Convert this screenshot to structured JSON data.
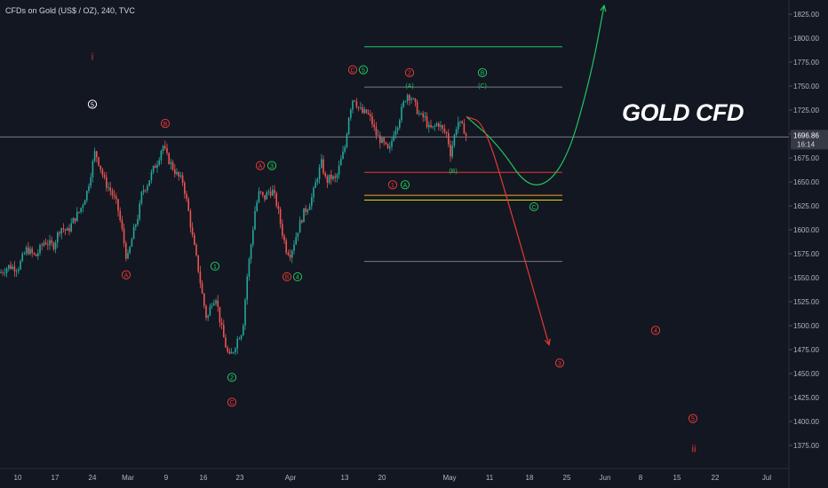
{
  "header": {
    "symbol": "CFDs on Gold (US$ / OZ), 240, TVC"
  },
  "chart_title": "GOLD CFD",
  "colors": {
    "background": "#131722",
    "up": "#26a69a",
    "down": "#ef5350",
    "green": "#22c55e",
    "red": "#e53935",
    "axis_text": "#b2b5be",
    "grid": "#2a2e39"
  },
  "chart_data": {
    "type": "candlestick",
    "y_ticks": [
      1375,
      1400,
      1425,
      1450,
      1475,
      1500,
      1525,
      1550,
      1575,
      1600,
      1625,
      1650,
      1675,
      1700,
      1725,
      1750,
      1775,
      1800,
      1825
    ],
    "ylim": [
      1362,
      1837
    ],
    "x_ticks": [
      "10",
      "17",
      "24",
      "Mar",
      "9",
      "16",
      "23",
      "Apr",
      "13",
      "20",
      "May",
      "11",
      "18",
      "25",
      "Jun",
      "8",
      "15",
      "22",
      "Jul"
    ],
    "last_price": "1696.86",
    "countdown": "16:14",
    "price_path": [
      [
        0,
        1555
      ],
      [
        10,
        1562
      ],
      [
        20,
        1560
      ],
      [
        30,
        1580
      ],
      [
        40,
        1572
      ],
      [
        50,
        1588
      ],
      [
        60,
        1583
      ],
      [
        68,
        1603
      ],
      [
        76,
        1598
      ],
      [
        84,
        1612
      ],
      [
        90,
        1620
      ],
      [
        98,
        1640
      ],
      [
        103,
        1663
      ],
      [
        107,
        1682
      ],
      [
        112,
        1668
      ],
      [
        118,
        1650
      ],
      [
        125,
        1640
      ],
      [
        132,
        1625
      ],
      [
        138,
        1596
      ],
      [
        143,
        1567
      ],
      [
        150,
        1597
      ],
      [
        156,
        1617
      ],
      [
        160,
        1640
      ],
      [
        166,
        1648
      ],
      [
        172,
        1662
      ],
      [
        178,
        1673
      ],
      [
        183,
        1689
      ],
      [
        188,
        1676
      ],
      [
        194,
        1666
      ],
      [
        200,
        1656
      ],
      [
        206,
        1650
      ],
      [
        212,
        1620
      ],
      [
        217,
        1590
      ],
      [
        223,
        1560
      ],
      [
        228,
        1530
      ],
      [
        233,
        1505
      ],
      [
        238,
        1525
      ],
      [
        243,
        1530
      ],
      [
        248,
        1503
      ],
      [
        253,
        1482
      ],
      [
        258,
        1466
      ],
      [
        263,
        1475
      ],
      [
        268,
        1488
      ],
      [
        273,
        1495
      ],
      [
        278,
        1550
      ],
      [
        282,
        1580
      ],
      [
        287,
        1620
      ],
      [
        292,
        1640
      ],
      [
        297,
        1632
      ],
      [
        302,
        1640
      ],
      [
        307,
        1640
      ],
      [
        312,
        1625
      ],
      [
        317,
        1600
      ],
      [
        322,
        1580
      ],
      [
        327,
        1575
      ],
      [
        332,
        1590
      ],
      [
        337,
        1605
      ],
      [
        342,
        1618
      ],
      [
        347,
        1625
      ],
      [
        352,
        1636
      ],
      [
        357,
        1655
      ],
      [
        362,
        1670
      ],
      [
        367,
        1650
      ],
      [
        372,
        1655
      ],
      [
        378,
        1652
      ],
      [
        383,
        1670
      ],
      [
        388,
        1685
      ],
      [
        393,
        1722
      ],
      [
        398,
        1740
      ],
      [
        403,
        1728
      ],
      [
        408,
        1722
      ],
      [
        413,
        1722
      ],
      [
        418,
        1714
      ],
      [
        423,
        1700
      ],
      [
        428,
        1694
      ],
      [
        433,
        1688
      ],
      [
        438,
        1680
      ],
      [
        443,
        1702
      ],
      [
        448,
        1712
      ],
      [
        453,
        1728
      ],
      [
        458,
        1742
      ],
      [
        463,
        1738
      ],
      [
        468,
        1728
      ],
      [
        473,
        1718
      ],
      [
        478,
        1717
      ],
      [
        483,
        1705
      ],
      [
        488,
        1706
      ],
      [
        493,
        1712
      ],
      [
        498,
        1704
      ],
      [
        503,
        1700
      ],
      [
        507,
        1680
      ],
      [
        511,
        1696
      ],
      [
        515,
        1714
      ],
      [
        519,
        1708
      ],
      [
        523,
        1704
      ],
      [
        525,
        1697
      ]
    ],
    "horizontal_levels": [
      {
        "price": 1791,
        "x_start": "Apr 13",
        "x_end": "May 25",
        "color": "#22c55e"
      },
      {
        "price": 1749,
        "x_start": "Apr 13",
        "x_end": "May 25",
        "color": "#787b86"
      },
      {
        "price": 1696.86,
        "x_start": "Feb 3",
        "x_end": "Jul 6",
        "color": "#787b86"
      },
      {
        "price": 1660,
        "x_start": "Apr 13",
        "x_end": "May 25",
        "color": "#e53935"
      },
      {
        "price": 1636,
        "x_start": "Apr 13",
        "x_end": "May 25",
        "color": "#f5a623"
      },
      {
        "price": 1631,
        "x_start": "Apr 13",
        "x_end": "May 25",
        "color": "#e8d900"
      },
      {
        "price": 1567,
        "x_start": "Apr 13",
        "x_end": "May 25",
        "color": "#787b86"
      }
    ],
    "projections": [
      {
        "name": "bullish",
        "color": "#22c55e",
        "points": [
          [
            525,
            1718
          ],
          [
            560,
            1690
          ],
          [
            598,
            1638
          ],
          [
            636,
            1665
          ],
          [
            665,
            1760
          ],
          [
            680,
            1834
          ]
        ]
      },
      {
        "name": "bearish",
        "color": "#e53935",
        "points": [
          [
            525,
            1718
          ],
          [
            545,
            1712
          ],
          [
            575,
            1620
          ],
          [
            618,
            1480
          ]
        ]
      }
    ],
    "labels": [
      {
        "text": "i",
        "x": 104,
        "y": 1780,
        "color": "#e53935",
        "style": "plain"
      },
      {
        "text": "5",
        "x": 104,
        "y": 1731,
        "color": "#ffffff",
        "style": "circle"
      },
      {
        "text": "B",
        "x": 186,
        "y": 1711,
        "color": "#e53935",
        "style": "circle"
      },
      {
        "text": "A",
        "x": 142,
        "y": 1553,
        "color": "#e53935",
        "style": "circle"
      },
      {
        "text": "A",
        "x": 293,
        "y": 1667,
        "color": "#e53935",
        "style": "circle"
      },
      {
        "text": "3",
        "x": 306,
        "y": 1667,
        "color": "#22c55e",
        "style": "circle"
      },
      {
        "text": "1",
        "x": 242,
        "y": 1562,
        "color": "#22c55e",
        "style": "circle"
      },
      {
        "text": "2",
        "x": 261,
        "y": 1446,
        "color": "#22c55e",
        "style": "circle"
      },
      {
        "text": "C",
        "x": 261,
        "y": 1420,
        "color": "#e53935",
        "style": "circle"
      },
      {
        "text": "B",
        "x": 323,
        "y": 1551,
        "color": "#e53935",
        "style": "circle"
      },
      {
        "text": "4",
        "x": 335,
        "y": 1551,
        "color": "#22c55e",
        "style": "circle"
      },
      {
        "text": "C",
        "x": 397,
        "y": 1767,
        "color": "#e53935",
        "style": "circle"
      },
      {
        "text": "5",
        "x": 409,
        "y": 1767,
        "color": "#22c55e",
        "style": "circle"
      },
      {
        "text": "2",
        "x": 461,
        "y": 1764,
        "color": "#e53935",
        "style": "circle"
      },
      {
        "text": "(A)",
        "x": 461,
        "y": 1751,
        "color": "#22c55e",
        "style": "plain"
      },
      {
        "text": "B",
        "x": 543,
        "y": 1764,
        "color": "#22c55e",
        "style": "circle"
      },
      {
        "text": "(C)",
        "x": 543,
        "y": 1751,
        "color": "#22c55e",
        "style": "plain"
      },
      {
        "text": "1",
        "x": 442,
        "y": 1647,
        "color": "#e53935",
        "style": "circle"
      },
      {
        "text": "A",
        "x": 456,
        "y": 1647,
        "color": "#22c55e",
        "style": "circle"
      },
      {
        "text": "(B)",
        "x": 510,
        "y": 1662,
        "color": "#22c55e",
        "style": "plain"
      },
      {
        "text": "C",
        "x": 601,
        "y": 1624,
        "color": "#22c55e",
        "style": "circle"
      },
      {
        "text": "3",
        "x": 630,
        "y": 1461,
        "color": "#e53935",
        "style": "circle"
      },
      {
        "text": "4",
        "x": 738,
        "y": 1495,
        "color": "#e53935",
        "style": "circle"
      },
      {
        "text": "5",
        "x": 780,
        "y": 1403,
        "color": "#e53935",
        "style": "circle"
      },
      {
        "text": "ii",
        "x": 781,
        "y": 1371,
        "color": "#e53935",
        "style": "plain"
      }
    ]
  }
}
